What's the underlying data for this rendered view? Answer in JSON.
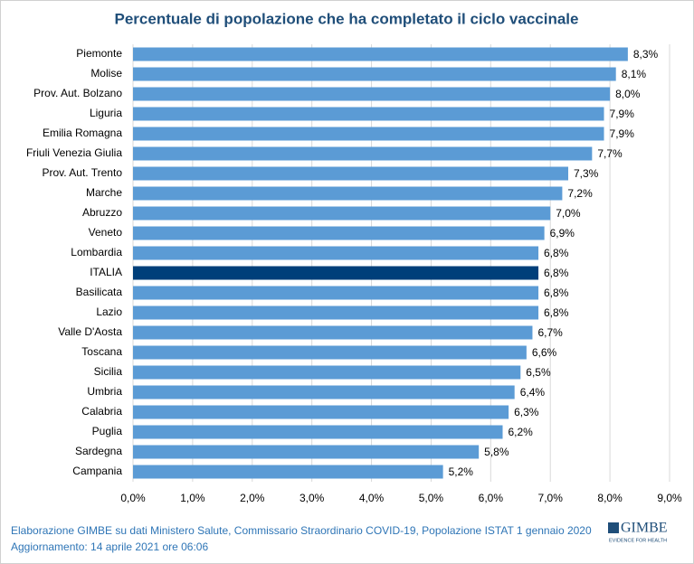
{
  "chart_data": {
    "type": "barh",
    "title": "Percentuale di popolazione che ha completato il ciclo vaccinale",
    "categories": [
      "Piemonte",
      "Molise",
      "Prov. Aut. Bolzano",
      "Liguria",
      "Emilia Romagna",
      "Friuli Venezia Giulia",
      "Prov. Aut. Trento",
      "Marche",
      "Abruzzo",
      "Veneto",
      "Lombardia",
      "ITALIA",
      "Basilicata",
      "Lazio",
      "Valle D'Aosta",
      "Toscana",
      "Sicilia",
      "Umbria",
      "Calabria",
      "Puglia",
      "Sardegna",
      "Campania"
    ],
    "values": [
      8.3,
      8.1,
      8.0,
      7.9,
      7.9,
      7.7,
      7.3,
      7.2,
      7.0,
      6.9,
      6.8,
      6.8,
      6.8,
      6.8,
      6.7,
      6.6,
      6.5,
      6.4,
      6.3,
      6.2,
      5.8,
      5.2
    ],
    "value_labels": [
      "8,3%",
      "8,1%",
      "8,0%",
      "7,9%",
      "7,9%",
      "7,7%",
      "7,3%",
      "7,2%",
      "7,0%",
      "6,9%",
      "6,8%",
      "6,8%",
      "6,8%",
      "6,8%",
      "6,7%",
      "6,6%",
      "6,5%",
      "6,4%",
      "6,3%",
      "6,2%",
      "5,8%",
      "5,2%"
    ],
    "colors": [
      "#5b9bd5",
      "#5b9bd5",
      "#5b9bd5",
      "#5b9bd5",
      "#5b9bd5",
      "#5b9bd5",
      "#5b9bd5",
      "#5b9bd5",
      "#5b9bd5",
      "#5b9bd5",
      "#5b9bd5",
      "#003f7a",
      "#5b9bd5",
      "#5b9bd5",
      "#5b9bd5",
      "#5b9bd5",
      "#5b9bd5",
      "#5b9bd5",
      "#5b9bd5",
      "#5b9bd5",
      "#5b9bd5",
      "#5b9bd5"
    ],
    "xlim": [
      0,
      9
    ],
    "xticks": [
      {
        "value": 0,
        "label": "0,0%"
      },
      {
        "value": 1,
        "label": "1,0%"
      },
      {
        "value": 2,
        "label": "2,0%"
      },
      {
        "value": 3,
        "label": "3,0%"
      },
      {
        "value": 4,
        "label": "4,0%"
      },
      {
        "value": 5,
        "label": "5,0%"
      },
      {
        "value": 6,
        "label": "6,0%"
      },
      {
        "value": 7,
        "label": "7,0%"
      },
      {
        "value": 8,
        "label": "8,0%"
      },
      {
        "value": 9,
        "label": "9,0%"
      }
    ],
    "grid": true
  },
  "footer": {
    "source": "Elaborazione GIMBE su dati Ministero Salute, Commissario  Straordinario COVID-19, Popolazione  ISTAT 1 gennaio 2020",
    "updated": "Aggiornamento: 14 aprile 2021 ore 06:06",
    "logo": "GIMBE",
    "logo_tagline": "EVIDENCE FOR HEALTH"
  }
}
